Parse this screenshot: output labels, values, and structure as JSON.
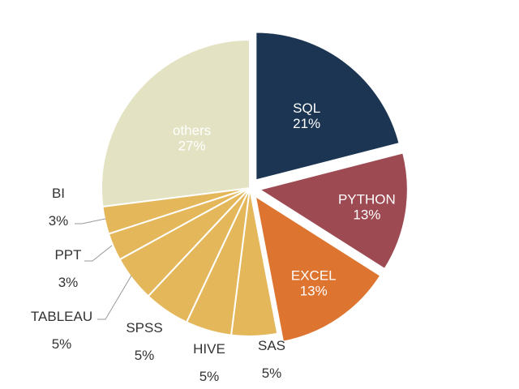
{
  "chart_data": {
    "type": "pie",
    "title": "",
    "slices": [
      {
        "label": "SQL",
        "value": 21,
        "percent_label": "21%",
        "color": "#1b3552",
        "exploded": true,
        "label_color": "#ffffff",
        "label_pos": "inside"
      },
      {
        "label": "PYTHON",
        "value": 13,
        "percent_label": "13%",
        "color": "#9d4a52",
        "exploded": true,
        "label_color": "#ffffff",
        "label_pos": "inside"
      },
      {
        "label": "EXCEL",
        "value": 13,
        "percent_label": "13%",
        "color": "#dd7530",
        "exploded": true,
        "label_color": "#ffffff",
        "label_pos": "inside"
      },
      {
        "label": "SAS",
        "value": 5,
        "percent_label": "5%",
        "color": "#e4b75a",
        "exploded": false,
        "label_color": "#333333",
        "label_pos": "outside"
      },
      {
        "label": "HIVE",
        "value": 5,
        "percent_label": "5%",
        "color": "#e4b75a",
        "exploded": false,
        "label_color": "#333333",
        "label_pos": "outside"
      },
      {
        "label": "SPSS",
        "value": 5,
        "percent_label": "5%",
        "color": "#e4b75a",
        "exploded": false,
        "label_color": "#333333",
        "label_pos": "outside"
      },
      {
        "label": "TABLEAU",
        "value": 5,
        "percent_label": "5%",
        "color": "#e4b75a",
        "exploded": false,
        "label_color": "#333333",
        "label_pos": "outside"
      },
      {
        "label": "PPT",
        "value": 3,
        "percent_label": "3%",
        "color": "#e4b75a",
        "exploded": false,
        "label_color": "#333333",
        "label_pos": "outside"
      },
      {
        "label": "BI",
        "value": 3,
        "percent_label": "3%",
        "color": "#e4b75a",
        "exploded": false,
        "label_color": "#333333",
        "label_pos": "outside"
      },
      {
        "label": "others",
        "value": 27,
        "percent_label": "27%",
        "color": "#e3e3c3",
        "exploded": false,
        "label_color": "#333333",
        "label_pos": "inside"
      }
    ]
  }
}
